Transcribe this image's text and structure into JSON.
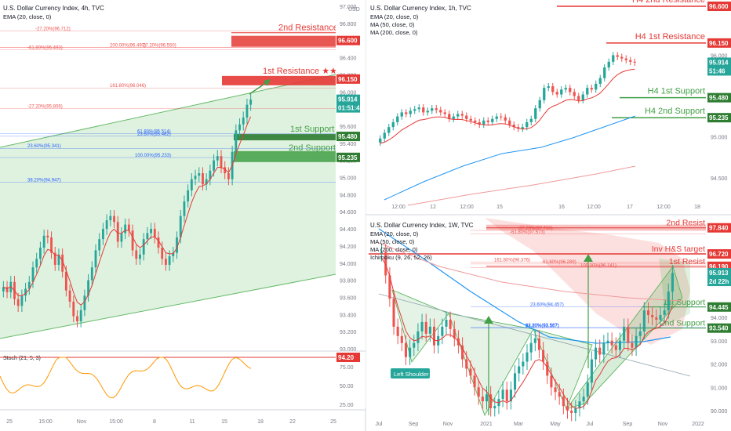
{
  "colors": {
    "resistance": "#e53935",
    "support": "#43a047",
    "fib_red": "#ef5350",
    "fib_blue": "#2962ff",
    "ema": "#e53935",
    "ma50": "#2196f3",
    "ma200": "#ef9a9a",
    "stoch": "#ff9800",
    "candle_up": "#26a69a",
    "candle_down": "#ef5350",
    "price_tag": "#26a69a"
  },
  "panel_4h": {
    "title": "U.S. Dollar Currency Index, 4h, TVC",
    "ema_label": "EMA (20, close, 0)",
    "axis_unit": "USD",
    "price_ticks": [
      "97.000",
      "96.800",
      "96.600",
      "96.400",
      "96.200",
      "96.000",
      "95.800",
      "95.600",
      "95.400",
      "95.200",
      "95.000",
      "94.800",
      "94.600",
      "94.400",
      "94.200",
      "94.000",
      "93.800",
      "93.600",
      "93.400",
      "93.200",
      "93.000"
    ],
    "time_ticks": [
      "25",
      "15:00",
      "Nov",
      "15:00",
      "8",
      "11",
      "15",
      "18",
      "22",
      "25"
    ],
    "level_2nd_resistance": {
      "label": "2nd Resistance",
      "price": "96.600"
    },
    "level_1st_resistance": {
      "label": "1st Resistance ★★★",
      "price": "96.150"
    },
    "level_1st_support": {
      "label": "1st Support",
      "price": "95.480"
    },
    "level_2nd_support": {
      "label": "2nd Support",
      "price": "95.235"
    },
    "current_price": "95.914",
    "countdown": "01:51:46",
    "fib_labels": [
      "-27.20%(96.712)",
      "200.00%(96.497)",
      "-27.20%(96.550)",
      "-61.80%(96.493)",
      "161.80%(96.046)",
      "-27.20%(95.806)",
      "61.80%(95.514)",
      "23.60%(95.482)",
      "23.60%(95.341)",
      "100.00%(95.233)",
      "38.20%(94.947)"
    ],
    "stoch_label": "Stoch (21, 5, 3)",
    "stoch_ticks": [
      "94.20",
      "75.00",
      "50.00",
      "25.00"
    ]
  },
  "panel_1h": {
    "title": "U.S. Dollar Currency Index, 1h, TVC",
    "indicators": [
      "EMA (20, close, 0)",
      "MA (50, close, 0)",
      "MA (200, close, 0)"
    ],
    "axis_unit": "USD",
    "price_ticks": [
      "96.000",
      "95.500",
      "95.000",
      "94.500"
    ],
    "time_ticks": [
      "12:00",
      "12",
      "12:00",
      "15",
      "16",
      "12:00",
      "17",
      "12:00",
      "18"
    ],
    "level_h4_2nd_resistance": {
      "label": "H4 2nd Resistance",
      "price": "96.600"
    },
    "level_h4_1st_resistance": {
      "label": "H4 1st Resistance",
      "price": "96.150"
    },
    "level_h4_1st_support": {
      "label": "H4 1st Support",
      "price": "95.480"
    },
    "level_h4_2nd_support": {
      "label": "H4 2nd Support",
      "price": "95.235"
    },
    "current_price": "95.914",
    "countdown": "51:46"
  },
  "panel_1w": {
    "title": "U.S. Dollar Currency Index, 1W, TVC",
    "indicators": [
      "EMA (20, close, 0)",
      "MA (50, close, 0)",
      "MA (200, close, 0)",
      "Ichimoku (9, 26, 52, 26)"
    ],
    "price_ticks": [
      "94.000",
      "93.000",
      "92.000",
      "91.000",
      "90.000"
    ],
    "time_ticks": [
      "Jul",
      "Sep",
      "Nov",
      "2021",
      "Mar",
      "May",
      "Jul",
      "Sep",
      "Nov",
      "2022"
    ],
    "level_2nd_resistance": {
      "label": "2nd Resist",
      "price": "97.840"
    },
    "level_inv_hs": {
      "label": "Inv H&S target",
      "price": "96.720"
    },
    "level_1st_resistance": {
      "label": "1st Resist",
      "price": "96.190"
    },
    "level_1st_support": {
      "label": "1st Support",
      "price": "94.445"
    },
    "level_2nd_support": {
      "label": "2nd Support",
      "price": "93.540"
    },
    "current_price": "95.913",
    "countdown": "2d 22h",
    "left_shoulder": "Left Shoulder",
    "fib_labels": [
      "-27.20%(97.730)",
      "-61.80%(97.573)",
      "161.80%(96.376)",
      "-61.80%(96.289)",
      "100.00%(96.141)",
      "23.60%(94.457)",
      "61.80%(93.567)",
      "38.20%(93.567)"
    ]
  },
  "chart_data": [
    {
      "type": "candlestick",
      "title": "U.S. Dollar Currency Index, 4h, TVC",
      "ylim": [
        93.0,
        97.0
      ],
      "levels": [
        96.6,
        96.15,
        95.48,
        95.235
      ],
      "close_series": [
        93.72,
        93.66,
        93.78,
        93.58,
        93.5,
        93.62,
        93.7,
        93.78,
        93.95,
        94.05,
        94.18,
        94.32,
        94.3,
        94.12,
        93.98,
        94.1,
        93.9,
        93.68,
        93.55,
        93.38,
        93.32,
        93.45,
        93.62,
        93.8,
        93.95,
        94.15,
        94.28,
        94.4,
        94.5,
        94.55,
        94.48,
        94.25,
        94.35,
        94.45,
        94.38,
        94.15,
        94.05,
        94.1,
        94.28,
        94.35,
        94.4,
        94.3,
        94.18,
        94.05,
        93.98,
        94.08,
        94.12,
        94.3,
        94.55,
        94.72,
        94.85,
        94.98,
        95.02,
        95.05,
        94.92,
        94.98,
        95.08,
        95.2,
        95.25,
        95.12,
        95.05,
        94.98,
        95.3,
        95.55,
        95.62,
        95.7,
        95.85,
        95.91
      ]
    },
    {
      "type": "candlestick",
      "title": "U.S. Dollar Currency Index, 1h, TVC",
      "ylim": [
        94.2,
        96.6
      ],
      "close_series": [
        94.98,
        95.05,
        95.12,
        95.18,
        95.25,
        95.3,
        95.28,
        95.32,
        95.34,
        95.36,
        95.3,
        95.32,
        95.35,
        95.33,
        95.3,
        95.28,
        95.22,
        95.25,
        95.28,
        95.26,
        95.22,
        95.2,
        95.18,
        95.15,
        95.2,
        95.18,
        95.22,
        95.25,
        95.24,
        95.2,
        95.15,
        95.12,
        95.1,
        95.12,
        95.18,
        95.22,
        95.35,
        95.45,
        95.6,
        95.62,
        95.55,
        95.52,
        95.58,
        95.6,
        95.55,
        95.5,
        95.45,
        95.52,
        95.6,
        95.58,
        95.65,
        95.72,
        95.85,
        95.92,
        96.0,
        95.98,
        95.96,
        95.94,
        95.92,
        95.91
      ]
    },
    {
      "type": "candlestick",
      "title": "U.S. Dollar Currency Index, 1W, TVC",
      "ylim": [
        89.8,
        98.2
      ],
      "levels": [
        97.84,
        96.72,
        96.19,
        94.445,
        93.54
      ],
      "close_series": [
        96.8,
        95.8,
        94.8,
        93.6,
        93.2,
        92.9,
        92.3,
        92.7,
        92.9,
        93.4,
        93.8,
        93.3,
        93.6,
        92.8,
        93.2,
        93.6,
        93.9,
        93.5,
        93.1,
        92.8,
        92.2,
        91.8,
        91.5,
        91.0,
        90.6,
        90.4,
        90.7,
        90.1,
        90.2,
        90.5,
        90.9,
        90.4,
        90.9,
        91.6,
        91.9,
        92.1,
        92.5,
        92.9,
        93.1,
        92.6,
        92.1,
        91.5,
        91.0,
        90.8,
        90.6,
        90.2,
        90.0,
        89.9,
        90.1,
        90.4,
        90.6,
        91.2,
        92.2,
        92.7,
        92.4,
        92.9,
        93.0,
        92.8,
        92.6,
        93.0,
        93.6,
        92.9,
        92.7,
        93.2,
        93.4,
        94.3,
        94.1,
        94.0,
        93.9,
        94.1,
        94.3,
        95.1,
        95.9
      ]
    }
  ]
}
